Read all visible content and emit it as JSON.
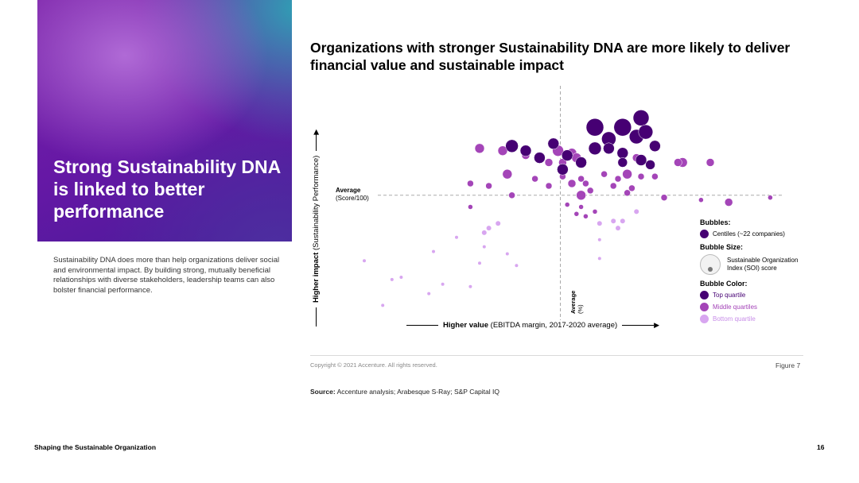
{
  "hero": {
    "title": "Strong Sustainability DNA is linked to better performance"
  },
  "intro": "Sustainability DNA does more than help organizations deliver social and environmental impact. By building strong, mutually beneficial relationships with diverse stakeholders, leadership teams can also bolster financial performance.",
  "colors": {
    "top": "#460073",
    "middle": "#a445b8",
    "bottom": "#d8a6f0",
    "accent": "#a100ff"
  },
  "chart_data": {
    "type": "scatter",
    "title": "Organizations with stronger Sustainability DNA are more likely to deliver financial value and sustainable impact",
    "ylabel_bold": "Higher impact",
    "ylabel_rest": "(Sustainability Performance)",
    "xlabel_bold": "Higher value",
    "xlabel_rest": "(EBITDA margin, 2017-2020 average)",
    "avg_y_label": "Average",
    "avg_y_sub": "(Score/100)",
    "avg_x_label": "Average",
    "avg_x_sub": "(%)",
    "grid": false,
    "legend_position": "right",
    "xlim": [
      0,
      100
    ],
    "ylim": [
      0,
      100
    ],
    "avg_x": 52.5,
    "avg_y": 55,
    "series": [
      {
        "quartile": "top",
        "points": [
          {
            "x": 60,
            "y": 84,
            "s": 11
          },
          {
            "x": 66,
            "y": 84,
            "s": 11
          },
          {
            "x": 70,
            "y": 88,
            "s": 10
          },
          {
            "x": 69,
            "y": 80,
            "s": 9
          },
          {
            "x": 71,
            "y": 82,
            "s": 9
          },
          {
            "x": 63,
            "y": 79,
            "s": 9
          },
          {
            "x": 51,
            "y": 77,
            "s": 7
          },
          {
            "x": 42,
            "y": 76,
            "s": 8
          },
          {
            "x": 45,
            "y": 74,
            "s": 7
          },
          {
            "x": 48,
            "y": 71,
            "s": 7
          },
          {
            "x": 54,
            "y": 72,
            "s": 7
          },
          {
            "x": 60,
            "y": 75,
            "s": 8
          },
          {
            "x": 63,
            "y": 75,
            "s": 7
          },
          {
            "x": 66,
            "y": 73,
            "s": 7
          },
          {
            "x": 73,
            "y": 76,
            "s": 7
          },
          {
            "x": 70,
            "y": 70,
            "s": 7
          },
          {
            "x": 57,
            "y": 69,
            "s": 7
          },
          {
            "x": 66,
            "y": 69,
            "s": 6
          },
          {
            "x": 72,
            "y": 68,
            "s": 6
          },
          {
            "x": 53,
            "y": 66,
            "s": 7
          }
        ]
      },
      {
        "quartile": "middle",
        "points": [
          {
            "x": 35,
            "y": 75,
            "s": 6
          },
          {
            "x": 40,
            "y": 74,
            "s": 6
          },
          {
            "x": 52,
            "y": 74,
            "s": 7
          },
          {
            "x": 55,
            "y": 73,
            "s": 6
          },
          {
            "x": 56,
            "y": 71,
            "s": 6
          },
          {
            "x": 69,
            "y": 71,
            "s": 5
          },
          {
            "x": 79,
            "y": 69,
            "s": 6
          },
          {
            "x": 85,
            "y": 69,
            "s": 5
          },
          {
            "x": 78,
            "y": 69,
            "s": 5
          },
          {
            "x": 45,
            "y": 72,
            "s": 5
          },
          {
            "x": 50,
            "y": 69,
            "s": 5
          },
          {
            "x": 53,
            "y": 69,
            "s": 5
          },
          {
            "x": 41,
            "y": 64,
            "s": 6
          },
          {
            "x": 47,
            "y": 62,
            "s": 4
          },
          {
            "x": 53,
            "y": 63,
            "s": 4
          },
          {
            "x": 57,
            "y": 62,
            "s": 4
          },
          {
            "x": 62,
            "y": 64,
            "s": 4
          },
          {
            "x": 67,
            "y": 64,
            "s": 6
          },
          {
            "x": 65,
            "y": 62,
            "s": 4
          },
          {
            "x": 70,
            "y": 63,
            "s": 4
          },
          {
            "x": 73,
            "y": 63,
            "s": 4
          },
          {
            "x": 55,
            "y": 60,
            "s": 5
          },
          {
            "x": 58,
            "y": 60,
            "s": 4
          },
          {
            "x": 64,
            "y": 59,
            "s": 4
          },
          {
            "x": 68,
            "y": 58,
            "s": 4
          },
          {
            "x": 37,
            "y": 59,
            "s": 4
          },
          {
            "x": 50,
            "y": 59,
            "s": 4
          },
          {
            "x": 33,
            "y": 60,
            "s": 4
          },
          {
            "x": 59,
            "y": 57,
            "s": 4
          },
          {
            "x": 67,
            "y": 56,
            "s": 4
          },
          {
            "x": 42,
            "y": 55,
            "s": 4
          },
          {
            "x": 57,
            "y": 55,
            "s": 6
          },
          {
            "x": 75,
            "y": 54,
            "s": 4
          },
          {
            "x": 83,
            "y": 53,
            "s": 3
          },
          {
            "x": 89,
            "y": 52,
            "s": 5
          },
          {
            "x": 98,
            "y": 54,
            "s": 3
          },
          {
            "x": 54,
            "y": 51,
            "s": 3
          },
          {
            "x": 57,
            "y": 50,
            "s": 3
          },
          {
            "x": 33,
            "y": 50,
            "s": 3
          },
          {
            "x": 60,
            "y": 48,
            "s": 3
          },
          {
            "x": 56,
            "y": 47,
            "s": 3
          },
          {
            "x": 58,
            "y": 46,
            "s": 3
          }
        ]
      },
      {
        "quartile": "bottom",
        "points": [
          {
            "x": 69,
            "y": 48,
            "s": 3
          },
          {
            "x": 64,
            "y": 44,
            "s": 3
          },
          {
            "x": 66,
            "y": 44,
            "s": 3
          },
          {
            "x": 61,
            "y": 43,
            "s": 3
          },
          {
            "x": 65,
            "y": 41,
            "s": 3
          },
          {
            "x": 39,
            "y": 43,
            "s": 3
          },
          {
            "x": 37,
            "y": 41,
            "s": 3
          },
          {
            "x": 36,
            "y": 39,
            "s": 3
          },
          {
            "x": 30,
            "y": 37,
            "s": 2
          },
          {
            "x": 61,
            "y": 36,
            "s": 2
          },
          {
            "x": 36,
            "y": 33,
            "s": 2
          },
          {
            "x": 25,
            "y": 31,
            "s": 2
          },
          {
            "x": 41,
            "y": 30,
            "s": 2
          },
          {
            "x": 43,
            "y": 25,
            "s": 2
          },
          {
            "x": 35,
            "y": 26,
            "s": 2
          },
          {
            "x": 61,
            "y": 28,
            "s": 2
          },
          {
            "x": 10,
            "y": 27,
            "s": 2
          },
          {
            "x": 18,
            "y": 20,
            "s": 2
          },
          {
            "x": 16,
            "y": 19,
            "s": 2
          },
          {
            "x": 27,
            "y": 17,
            "s": 2
          },
          {
            "x": 24,
            "y": 13,
            "s": 2
          },
          {
            "x": 33,
            "y": 16,
            "s": 2
          },
          {
            "x": 14,
            "y": 8,
            "s": 2
          }
        ]
      }
    ],
    "legend": {
      "bubbles_title": "Bubbles:",
      "bubbles_item": "Centiles (~22 companies)",
      "size_title": "Bubble Size:",
      "size_item": "Sustainable Organization Index (SOI) score",
      "color_title": "Bubble Color:",
      "top": "Top quartile",
      "middle": "Middle quartiles",
      "bottom": "Bottom quartile"
    }
  },
  "footer": {
    "copyright": "Copyright © 2021 Accenture. All rights reserved.",
    "figure": "Figure 7",
    "source_label": "Source:",
    "source_text": "Accenture analysis; Arabesque S-Ray; S&P Capital IQ",
    "doc_title": "Shaping the Sustainable Organization",
    "page_number": "16"
  }
}
